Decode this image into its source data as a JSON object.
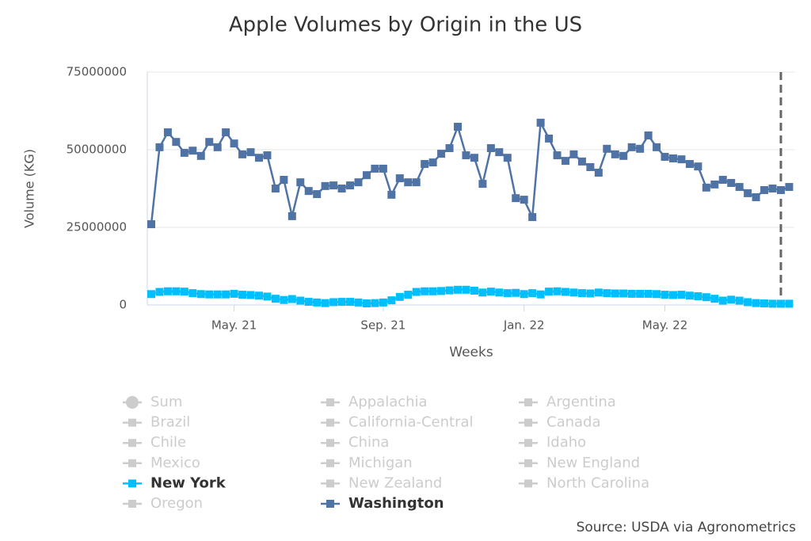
{
  "chart_data": {
    "type": "line",
    "title": "Apple Volumes by Origin in the US",
    "x_label": "Weeks",
    "y_label": "Volume (KG)",
    "source": "Source: USDA via Agronometrics",
    "categories": [
      null,
      null,
      null,
      null,
      null,
      null,
      null,
      null,
      null,
      null,
      "May. 21",
      null,
      null,
      null,
      null,
      null,
      null,
      null,
      null,
      null,
      null,
      null,
      null,
      null,
      null,
      null,
      null,
      null,
      "Sep. 21",
      null,
      null,
      null,
      null,
      null,
      null,
      null,
      null,
      null,
      null,
      null,
      null,
      null,
      null,
      null,
      null,
      "Jan. 22",
      null,
      null,
      null,
      null,
      null,
      null,
      null,
      null,
      null,
      null,
      null,
      null,
      null,
      null,
      null,
      null,
      "May. 22",
      null,
      null,
      null,
      null,
      null,
      null,
      null,
      null,
      null,
      null,
      null,
      null,
      null,
      null,
      null
    ],
    "ylim": [
      0,
      75000000
    ],
    "yticks": [
      0,
      25000000,
      50000000,
      75000000
    ],
    "grid": true,
    "series": [
      {
        "name": "Sum",
        "color": "#cccccc",
        "marker": "circle",
        "visible": false
      },
      {
        "name": "Appalachia",
        "color": "#cccccc",
        "marker": "square",
        "visible": false
      },
      {
        "name": "Argentina",
        "color": "#cccccc",
        "marker": "square",
        "visible": false
      },
      {
        "name": "Brazil",
        "color": "#cccccc",
        "marker": "square",
        "visible": false
      },
      {
        "name": "California-Central",
        "color": "#cccccc",
        "marker": "square",
        "visible": false
      },
      {
        "name": "Canada",
        "color": "#cccccc",
        "marker": "square",
        "visible": false
      },
      {
        "name": "Chile",
        "color": "#cccccc",
        "marker": "square",
        "visible": false
      },
      {
        "name": "China",
        "color": "#cccccc",
        "marker": "square",
        "visible": false
      },
      {
        "name": "Idaho",
        "color": "#cccccc",
        "marker": "square",
        "visible": false
      },
      {
        "name": "Mexico",
        "color": "#cccccc",
        "marker": "square",
        "visible": false
      },
      {
        "name": "Michigan",
        "color": "#cccccc",
        "marker": "square",
        "visible": false
      },
      {
        "name": "New England",
        "color": "#cccccc",
        "marker": "square",
        "visible": false
      },
      {
        "name": "New York",
        "color": "#00bfff",
        "marker": "square",
        "visible": true,
        "values": [
          3500000,
          4200000,
          4400000,
          4400000,
          4300000,
          3800000,
          3500000,
          3400000,
          3400000,
          3400000,
          3600000,
          3300000,
          3200000,
          3000000,
          2700000,
          2000000,
          1600000,
          1900000,
          1400000,
          1000000,
          800000,
          600000,
          900000,
          1000000,
          1000000,
          800000,
          500000,
          600000,
          800000,
          1500000,
          2600000,
          3300000,
          4200000,
          4400000,
          4400000,
          4500000,
          4700000,
          4900000,
          4900000,
          4600000,
          4000000,
          4300000,
          4000000,
          3800000,
          3900000,
          3500000,
          3800000,
          3400000,
          4300000,
          4400000,
          4200000,
          4000000,
          3800000,
          3700000,
          4000000,
          3800000,
          3700000,
          3700000,
          3600000,
          3600000,
          3600000,
          3500000,
          3300000,
          3200000,
          3300000,
          3000000,
          2800000,
          2500000,
          2000000,
          1400000,
          1700000,
          1400000,
          900000,
          600000,
          500000,
          400000,
          400000,
          400000
        ]
      },
      {
        "name": "New Zealand",
        "color": "#cccccc",
        "marker": "square",
        "visible": false
      },
      {
        "name": "North Carolina",
        "color": "#cccccc",
        "marker": "square",
        "visible": false
      },
      {
        "name": "Oregon",
        "color": "#cccccc",
        "marker": "square",
        "visible": false
      },
      {
        "name": "Washington",
        "color": "#4f73a5",
        "marker": "square",
        "visible": true,
        "values": [
          26000000,
          50800000,
          55600000,
          52500000,
          49000000,
          49700000,
          48000000,
          52500000,
          50800000,
          55600000,
          52000000,
          48500000,
          49200000,
          47400000,
          48200000,
          37500000,
          40300000,
          28600000,
          39500000,
          36700000,
          35700000,
          38300000,
          38500000,
          37500000,
          38500000,
          39500000,
          41800000,
          43900000,
          43900000,
          35500000,
          40800000,
          39500000,
          39500000,
          45400000,
          45900000,
          48700000,
          50500000,
          57400000,
          48200000,
          47400000,
          39000000,
          50500000,
          49200000,
          47400000,
          34400000,
          33900000,
          28300000,
          58700000,
          53600000,
          48200000,
          46400000,
          48500000,
          46200000,
          44400000,
          42600000,
          50300000,
          48500000,
          48000000,
          50800000,
          50300000,
          54600000,
          50800000,
          47700000,
          47200000,
          46900000,
          45400000,
          44600000,
          37800000,
          38800000,
          40300000,
          39300000,
          38000000,
          36000000,
          34700000,
          37000000,
          37500000,
          37000000,
          38000000
        ]
      }
    ]
  }
}
